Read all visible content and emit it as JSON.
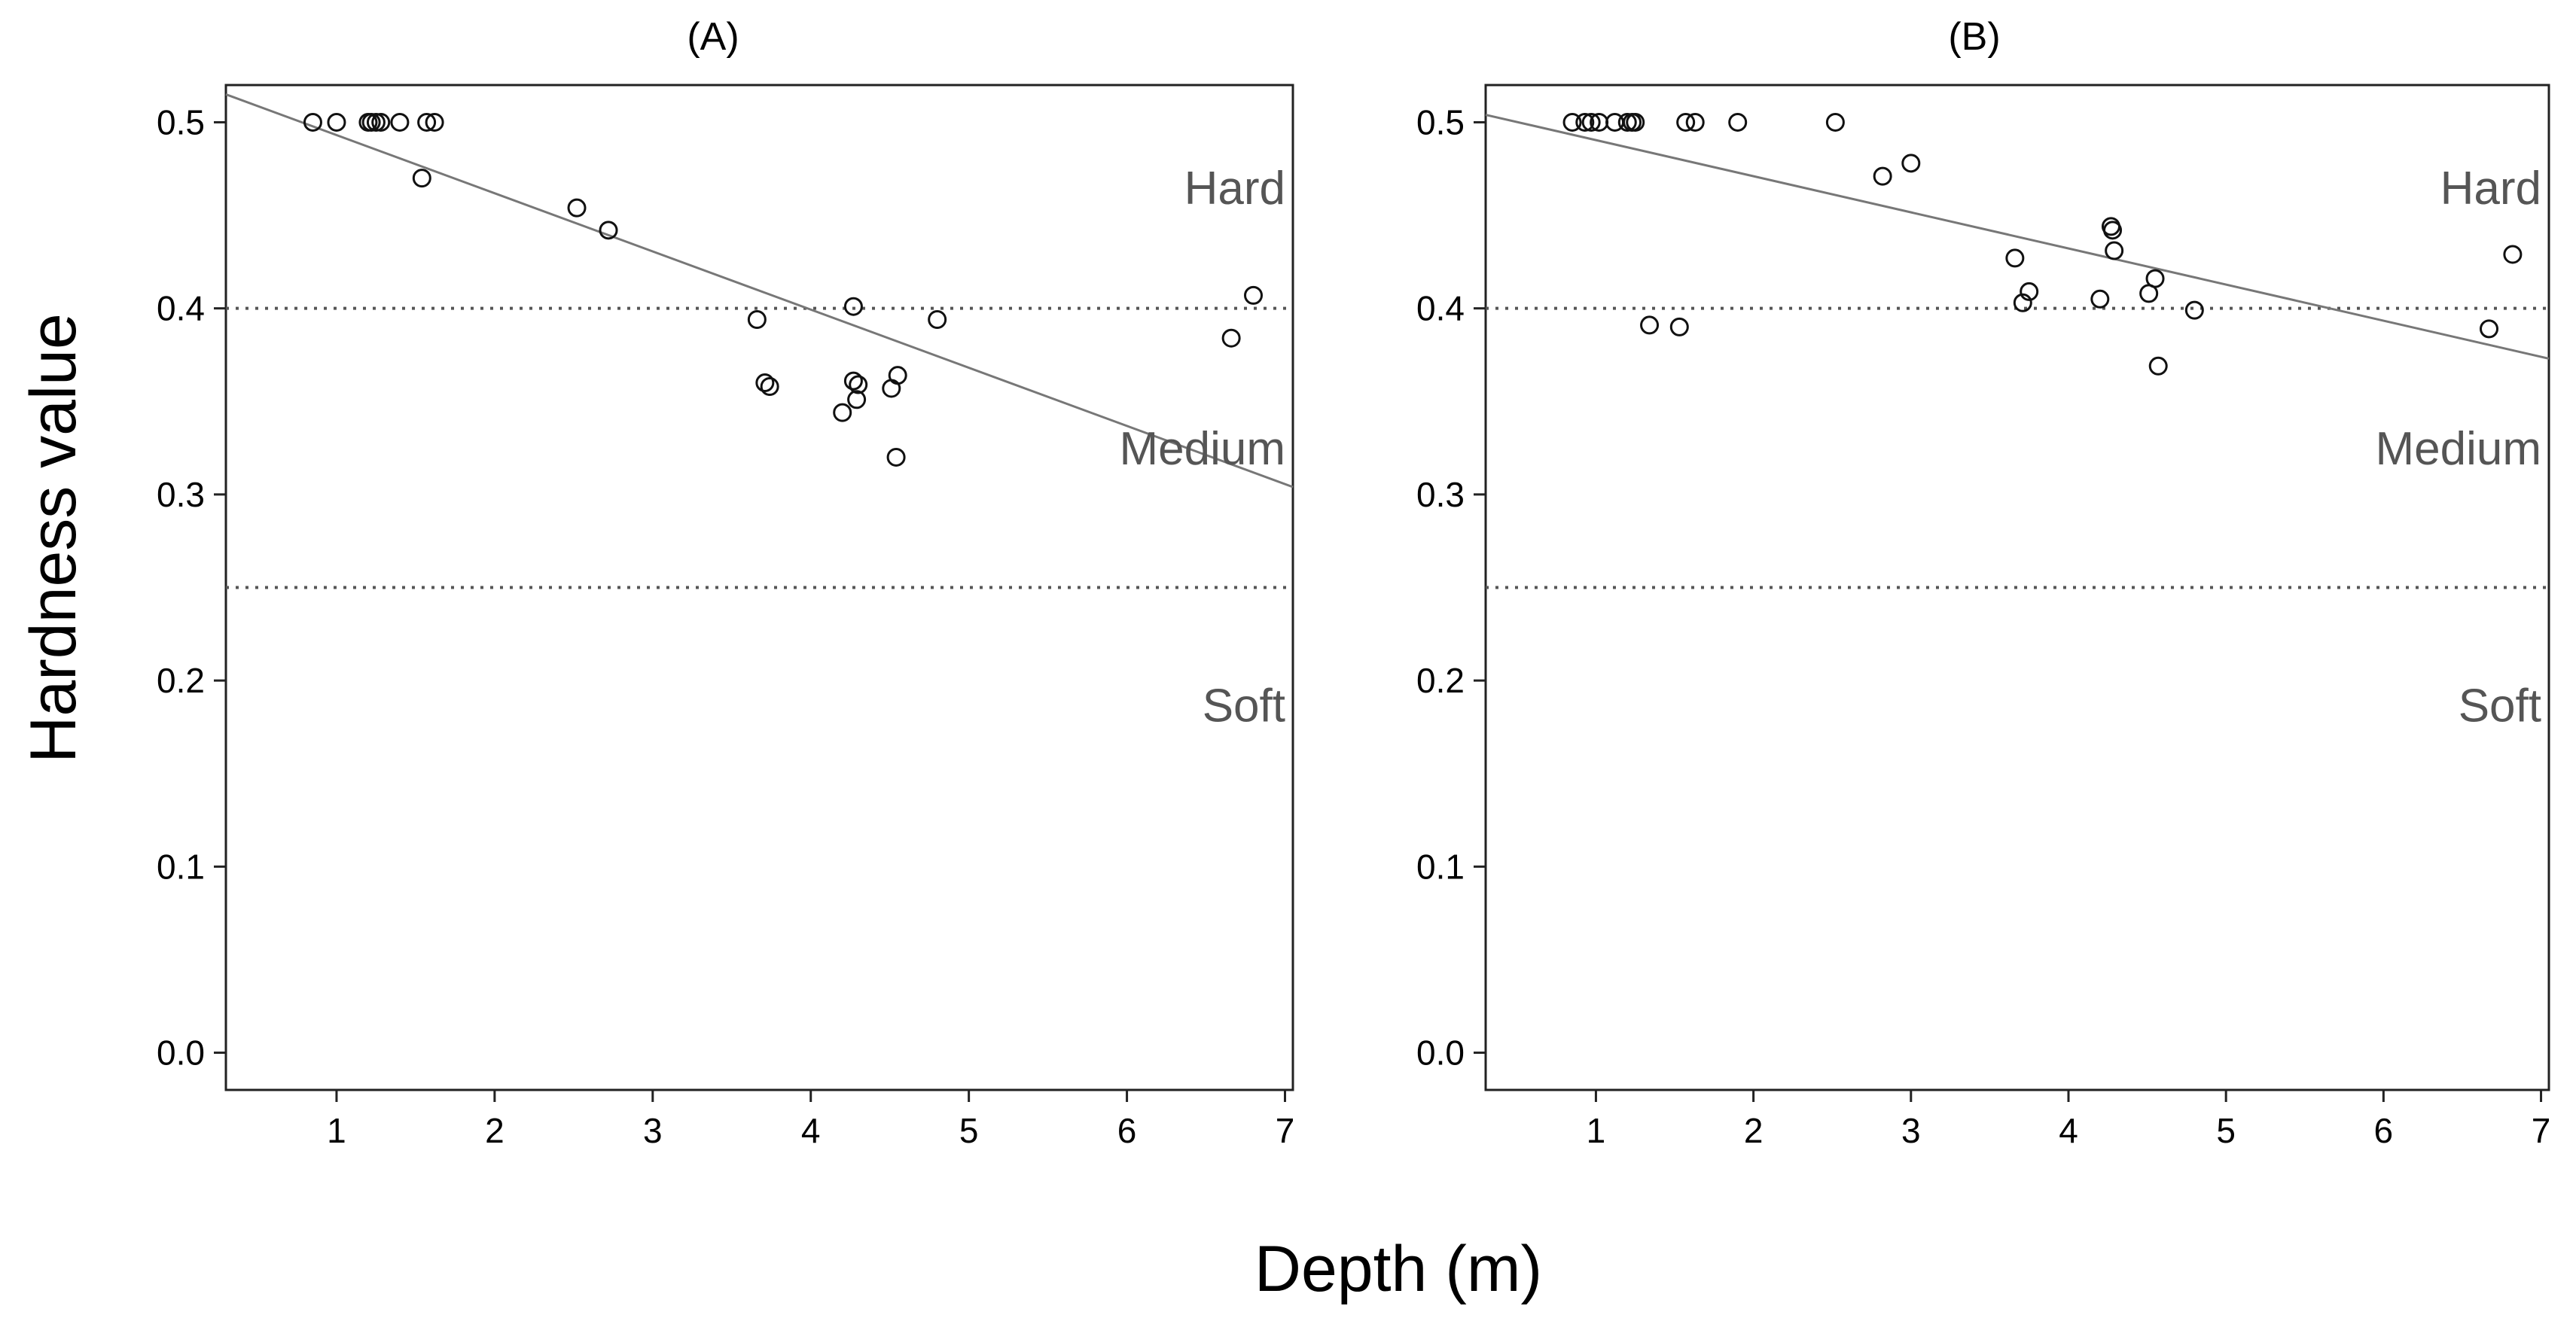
{
  "figure": {
    "shared_ylabel": "Hardness value",
    "shared_xlabel": "Depth (m)"
  },
  "chart_data": [
    {
      "type": "scatter",
      "title": "(A)",
      "xlabel": "Depth (m)",
      "ylabel": "Hardness value",
      "xlim": [
        0.3,
        7.05
      ],
      "ylim": [
        -0.02,
        0.52
      ],
      "xticks": [
        1,
        2,
        3,
        4,
        5,
        6,
        7
      ],
      "yticks": [
        0.0,
        0.1,
        0.2,
        0.3,
        0.4,
        0.5
      ],
      "ytick_labels": [
        "0.0",
        "0.1",
        "0.2",
        "0.3",
        "0.4",
        "0.5"
      ],
      "reference_lines": [
        0.4,
        0.25
      ],
      "zone_labels": [
        {
          "text": "Hard",
          "y": 0.465
        },
        {
          "text": "Medium",
          "y": 0.325
        },
        {
          "text": "Soft",
          "y": 0.187
        }
      ],
      "fit_line": {
        "x": [
          0.3,
          7.05
        ],
        "y": [
          0.515,
          0.304
        ]
      },
      "points": {
        "x": [
          0.85,
          1.0,
          1.2,
          1.22,
          1.25,
          1.28,
          1.4,
          1.57,
          1.62,
          1.54,
          2.52,
          2.72,
          3.66,
          3.71,
          3.74,
          4.27,
          4.2,
          4.27,
          4.3,
          4.29,
          4.51,
          4.55,
          4.54,
          4.8,
          6.66,
          6.8
        ],
        "y": [
          0.5,
          0.5,
          0.5,
          0.5,
          0.5,
          0.5,
          0.5,
          0.5,
          0.5,
          0.47,
          0.454,
          0.442,
          0.394,
          0.36,
          0.358,
          0.401,
          0.344,
          0.361,
          0.359,
          0.351,
          0.357,
          0.364,
          0.32,
          0.394,
          0.384,
          0.407
        ]
      }
    },
    {
      "type": "scatter",
      "title": "(B)",
      "xlabel": "Depth (m)",
      "ylabel": "Hardness value",
      "xlim": [
        0.3,
        7.05
      ],
      "ylim": [
        -0.02,
        0.52
      ],
      "xticks": [
        1,
        2,
        3,
        4,
        5,
        6,
        7
      ],
      "yticks": [
        0.0,
        0.1,
        0.2,
        0.3,
        0.4,
        0.5
      ],
      "ytick_labels": [
        "0.0",
        "0.1",
        "0.2",
        "0.3",
        "0.4",
        "0.5"
      ],
      "reference_lines": [
        0.4,
        0.25
      ],
      "zone_labels": [
        {
          "text": "Hard",
          "y": 0.465
        },
        {
          "text": "Medium",
          "y": 0.325
        },
        {
          "text": "Soft",
          "y": 0.187
        }
      ],
      "fit_line": {
        "x": [
          0.3,
          7.05
        ],
        "y": [
          0.504,
          0.373
        ]
      },
      "points": {
        "x": [
          0.85,
          0.93,
          0.97,
          1.02,
          1.12,
          1.2,
          1.23,
          1.25,
          1.57,
          1.63,
          1.9,
          2.52,
          1.34,
          1.53,
          2.82,
          3.0,
          3.66,
          3.71,
          3.75,
          4.2,
          4.27,
          4.28,
          4.29,
          4.51,
          4.55,
          4.57,
          4.8,
          6.67,
          6.82
        ],
        "y": [
          0.5,
          0.5,
          0.5,
          0.5,
          0.5,
          0.5,
          0.5,
          0.5,
          0.5,
          0.5,
          0.5,
          0.5,
          0.391,
          0.39,
          0.471,
          0.478,
          0.427,
          0.403,
          0.409,
          0.405,
          0.444,
          0.442,
          0.431,
          0.408,
          0.416,
          0.369,
          0.399,
          0.389,
          0.429
        ]
      }
    }
  ]
}
